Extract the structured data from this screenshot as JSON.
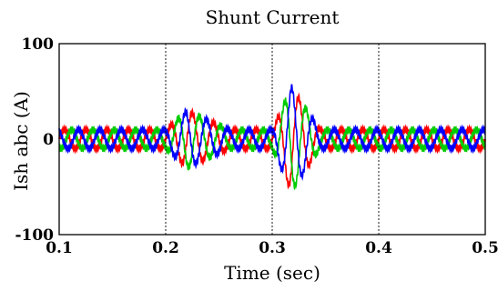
{
  "chart_data": {
    "type": "line",
    "title": "Shunt Current",
    "xlabel": "Time (sec)",
    "ylabel": "Ish abc (A)",
    "xlim": [
      0.1,
      0.5
    ],
    "ylim": [
      -100,
      100
    ],
    "xticks": [
      0.1,
      0.2,
      0.3,
      0.4,
      0.5
    ],
    "xtick_labels": [
      "0.1",
      "0.2",
      "0.3",
      "0.4",
      "0.5"
    ],
    "yticks": [
      -100,
      0,
      100
    ],
    "ytick_labels": [
      "-100",
      "0",
      "100"
    ],
    "grid": "vertical dotted at 0.2, 0.3, 0.4",
    "signal": {
      "frequency_hz": 50,
      "steady_amplitude_A": 10,
      "switching_ripple_A": 3,
      "transients": [
        {
          "start_s": 0.2,
          "peak_time_s": 0.22,
          "end_s": 0.26,
          "peak_A": 30
        },
        {
          "start_s": 0.3,
          "peak_time_s": 0.318,
          "end_s": 0.345,
          "peak_A": 55
        }
      ]
    },
    "series": [
      {
        "phase_deg": 0,
        "color": "#ff0000"
      },
      {
        "phase_deg": -120,
        "color": "#00cc00"
      },
      {
        "phase_deg": 120,
        "color": "#0000ff"
      }
    ]
  }
}
